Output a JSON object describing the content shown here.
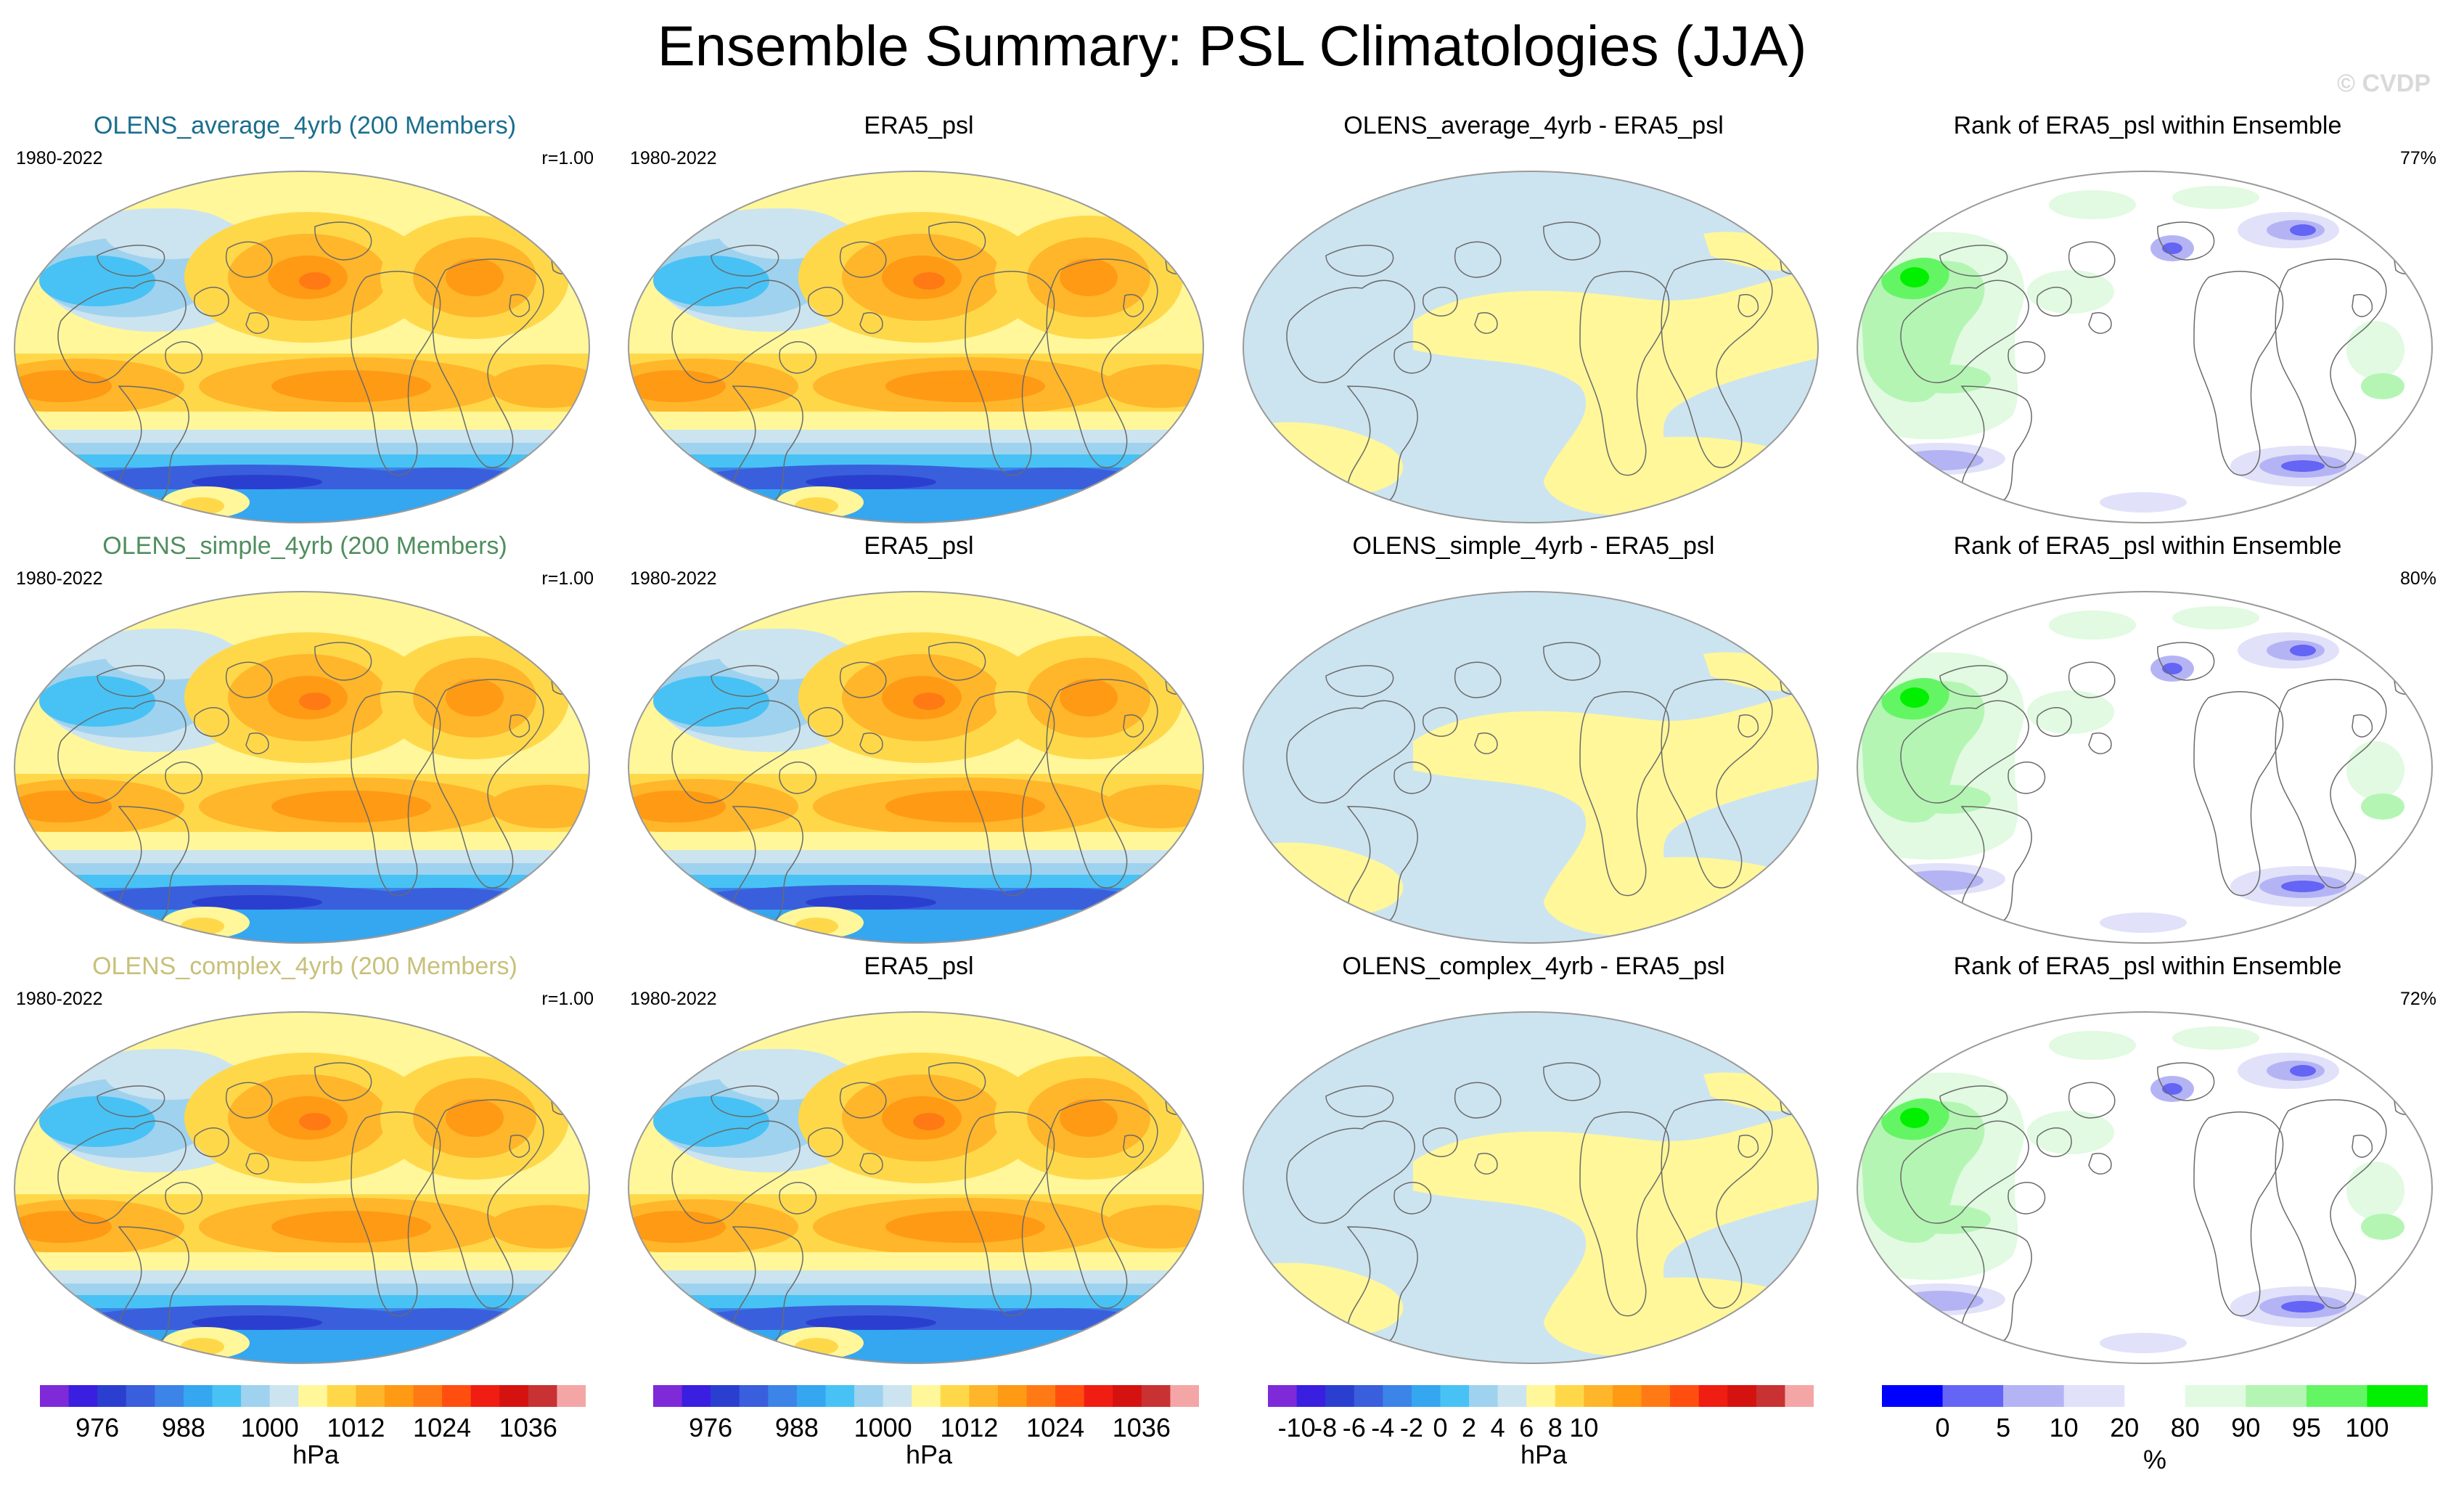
{
  "figure": {
    "title": "Ensemble Summary: PSL Climatologies (JJA)",
    "watermark": "© CVDP"
  },
  "chart_data": {
    "type": "heatmap",
    "title": "Ensemble Summary: PSL Climatologies (JJA)",
    "period": "1980-2022",
    "rows": [
      {
        "model_label": "OLENS_average_4yrb (200 Members)",
        "model_label_color": "#1a6e8e",
        "r_value": "r=1.00",
        "reference_label": "ERA5_psl",
        "diff_label": "OLENS_average_4yrb - ERA5_psl",
        "rank_label": "Rank of ERA5_psl within Ensemble",
        "rank_percent": "77%"
      },
      {
        "model_label": "OLENS_simple_4yrb (200 Members)",
        "model_label_color": "#4f8e5e",
        "r_value": "r=1.00",
        "reference_label": "ERA5_psl",
        "diff_label": "OLENS_simple_4yrb - ERA5_psl",
        "rank_label": "Rank of ERA5_psl within Ensemble",
        "rank_percent": "80%"
      },
      {
        "model_label": "OLENS_complex_4yrb (200 Members)",
        "model_label_color": "#c8c07a",
        "r_value": "r=1.00",
        "reference_label": "ERA5_psl",
        "diff_label": "OLENS_complex_4yrb - ERA5_psl",
        "rank_label": "Rank of ERA5_psl within Ensemble",
        "rank_percent": "72%"
      }
    ],
    "colorbars": [
      {
        "name": "psl",
        "unit": "hPa",
        "colors": [
          "#7e2ad8",
          "#3a1fe0",
          "#2a3fcf",
          "#3a5fdc",
          "#3c84e8",
          "#35a6f0",
          "#48c2f4",
          "#9fd2ee",
          "#cce4f0",
          "#fff79a",
          "#ffd84a",
          "#ffb62a",
          "#ff9a15",
          "#ff7a14",
          "#ff4e0f",
          "#ef1d12",
          "#d4120f",
          "#c83232",
          "#f4a6a6"
        ],
        "ticks": [
          "976",
          "988",
          "1000",
          "1012",
          "1024",
          "1036"
        ],
        "tick_boundaries": [
          2,
          5,
          8,
          11,
          14,
          17
        ]
      },
      {
        "name": "psl_ref",
        "unit": "hPa",
        "colors": [
          "#7e2ad8",
          "#3a1fe0",
          "#2a3fcf",
          "#3a5fdc",
          "#3c84e8",
          "#35a6f0",
          "#48c2f4",
          "#9fd2ee",
          "#cce4f0",
          "#fff79a",
          "#ffd84a",
          "#ffb62a",
          "#ff9a15",
          "#ff7a14",
          "#ff4e0f",
          "#ef1d12",
          "#d4120f",
          "#c83232",
          "#f4a6a6"
        ],
        "ticks": [
          "976",
          "988",
          "1000",
          "1012",
          "1024",
          "1036"
        ],
        "tick_boundaries": [
          2,
          5,
          8,
          11,
          14,
          17
        ]
      },
      {
        "name": "diff",
        "unit": "hPa",
        "colors": [
          "#7e2ad8",
          "#3a1fe0",
          "#2a3fcf",
          "#3a5fdc",
          "#3c84e8",
          "#35a6f0",
          "#48c2f4",
          "#9fd2ee",
          "#cce4f0",
          "#fff79a",
          "#ffd84a",
          "#ffb62a",
          "#ff9a15",
          "#ff7a14",
          "#ff4e0f",
          "#ef1d12",
          "#d4120f",
          "#c83232",
          "#f4a6a6"
        ],
        "ticks": [
          "-10",
          "-8",
          "-6",
          "-4",
          "-2",
          "0",
          "2",
          "4",
          "6",
          "8",
          "10"
        ],
        "tick_boundaries": [
          1,
          2,
          3,
          4,
          5,
          6,
          7,
          8,
          9,
          10,
          11
        ]
      },
      {
        "name": "rank",
        "unit": "%",
        "colors": [
          "#0000ff",
          "#6464f5",
          "#b4b4f5",
          "#e1e1fa",
          "#ffffff",
          "#e1fae1",
          "#b4f5b4",
          "#64f564",
          "#00f000"
        ],
        "ticks": [
          "0",
          "5",
          "10",
          "20",
          "80",
          "90",
          "95",
          "100"
        ],
        "tick_boundaries": [
          1,
          2,
          3,
          4,
          5,
          6,
          7,
          8
        ],
        "unit_at_boundary": 4.5
      }
    ]
  }
}
